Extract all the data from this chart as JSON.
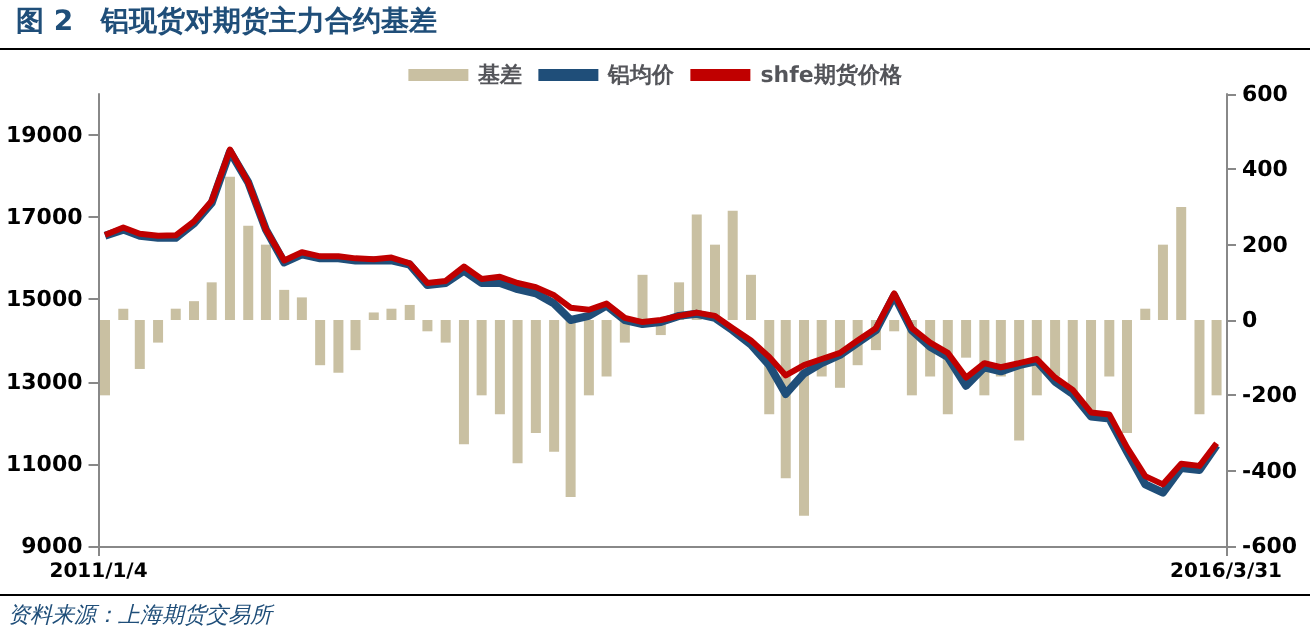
{
  "chart_data": {
    "type": "line",
    "title": "图 2　铝现货对期货主力合约基差",
    "annotations": [
      "资料来源：上海期货交易所"
    ],
    "x": [
      "2011-01-15",
      "2011-02-15",
      "2011-03-15",
      "2011-04-15",
      "2011-05-15",
      "2011-06-15",
      "2011-07-15",
      "2011-08-15",
      "2011-09-15",
      "2011-10-15",
      "2011-11-15",
      "2011-12-15",
      "2012-01-15",
      "2012-02-15",
      "2012-03-15",
      "2012-04-15",
      "2012-05-15",
      "2012-06-15",
      "2012-07-15",
      "2012-08-15",
      "2012-09-15",
      "2012-10-15",
      "2012-11-15",
      "2012-12-15",
      "2013-01-15",
      "2013-02-15",
      "2013-03-15",
      "2013-04-15",
      "2013-05-15",
      "2013-06-15",
      "2013-07-15",
      "2013-08-15",
      "2013-09-15",
      "2013-10-15",
      "2013-11-15",
      "2013-12-15",
      "2014-01-15",
      "2014-02-15",
      "2014-03-15",
      "2014-04-15",
      "2014-05-15",
      "2014-06-15",
      "2014-07-15",
      "2014-08-15",
      "2014-09-15",
      "2014-10-15",
      "2014-11-15",
      "2014-12-15",
      "2015-01-15",
      "2015-02-15",
      "2015-03-15",
      "2015-04-15",
      "2015-05-15",
      "2015-06-15",
      "2015-07-15",
      "2015-08-15",
      "2015-09-15",
      "2015-10-15",
      "2015-11-15",
      "2015-12-15",
      "2016-01-15",
      "2016-02-15",
      "2016-03-15"
    ],
    "series": [
      {
        "name": "基差",
        "type": "bar",
        "axis": "y2",
        "color": "#c9c0a2",
        "values": [
          -200,
          30,
          -130,
          -60,
          30,
          50,
          100,
          380,
          250,
          200,
          80,
          60,
          -120,
          -140,
          -80,
          20,
          30,
          40,
          -30,
          -60,
          -330,
          -200,
          -250,
          -380,
          -300,
          -350,
          -470,
          -200,
          -150,
          -60,
          120,
          -40,
          100,
          280,
          200,
          290,
          120,
          -250,
          -420,
          -520,
          -150,
          -180,
          -120,
          -80,
          -30,
          -200,
          -150,
          -250,
          -100,
          -200,
          -150,
          -320,
          -200,
          -150,
          -200,
          -250,
          -150,
          -300,
          30,
          200,
          300,
          -250,
          -200
        ]
      },
      {
        "name": "铝均价",
        "color": "#1f4e79",
        "values": [
          16550,
          16700,
          16550,
          16500,
          16500,
          16850,
          17350,
          18600,
          17850,
          16700,
          15900,
          16100,
          16000,
          16000,
          15950,
          15950,
          15950,
          15850,
          15350,
          15400,
          15700,
          15400,
          15400,
          15250,
          15150,
          14900,
          14500,
          14600,
          14850,
          14500,
          14400,
          14450,
          14600,
          14650,
          14550,
          14250,
          13900,
          13400,
          12700,
          13200,
          13450,
          13650,
          13950,
          14250,
          15100,
          14250,
          13850,
          13600,
          12900,
          13350,
          13250,
          13400,
          13500,
          13000,
          12700,
          12150,
          12100,
          11300,
          10500,
          10300,
          10900,
          10850,
          11450
        ]
      },
      {
        "name": "shfe期货价格",
        "color": "#c00000",
        "values": [
          16570,
          16750,
          16600,
          16550,
          16560,
          16900,
          17400,
          18650,
          17850,
          16700,
          15950,
          16150,
          16050,
          16050,
          16000,
          15980,
          16020,
          15880,
          15400,
          15450,
          15800,
          15500,
          15550,
          15400,
          15300,
          15100,
          14800,
          14750,
          14900,
          14550,
          14450,
          14500,
          14600,
          14680,
          14600,
          14300,
          14000,
          13600,
          13150,
          13400,
          13550,
          13700,
          14000,
          14300,
          15150,
          14300,
          13950,
          13700,
          13100,
          13450,
          13350,
          13450,
          13550,
          13100,
          12800,
          12250,
          12200,
          11400,
          10700,
          10500,
          11000,
          10950,
          11500
        ]
      }
    ],
    "xlim": [
      "2011-01-04",
      "2016-03-31"
    ],
    "xticks": [
      {
        "value": "2011-01-04",
        "label": "2011/1/4"
      },
      {
        "value": "2016-03-31",
        "label": "2016/3/31"
      }
    ],
    "ylim": [
      9000,
      20000
    ],
    "yticks": [
      9000,
      11000,
      13000,
      15000,
      17000,
      19000
    ],
    "y2lim": [
      -600,
      600
    ],
    "y2ticks": [
      -600,
      -400,
      -200,
      0,
      200,
      400,
      600
    ],
    "legend": "top",
    "grid": false,
    "marker": "none",
    "line_style": "solid"
  }
}
